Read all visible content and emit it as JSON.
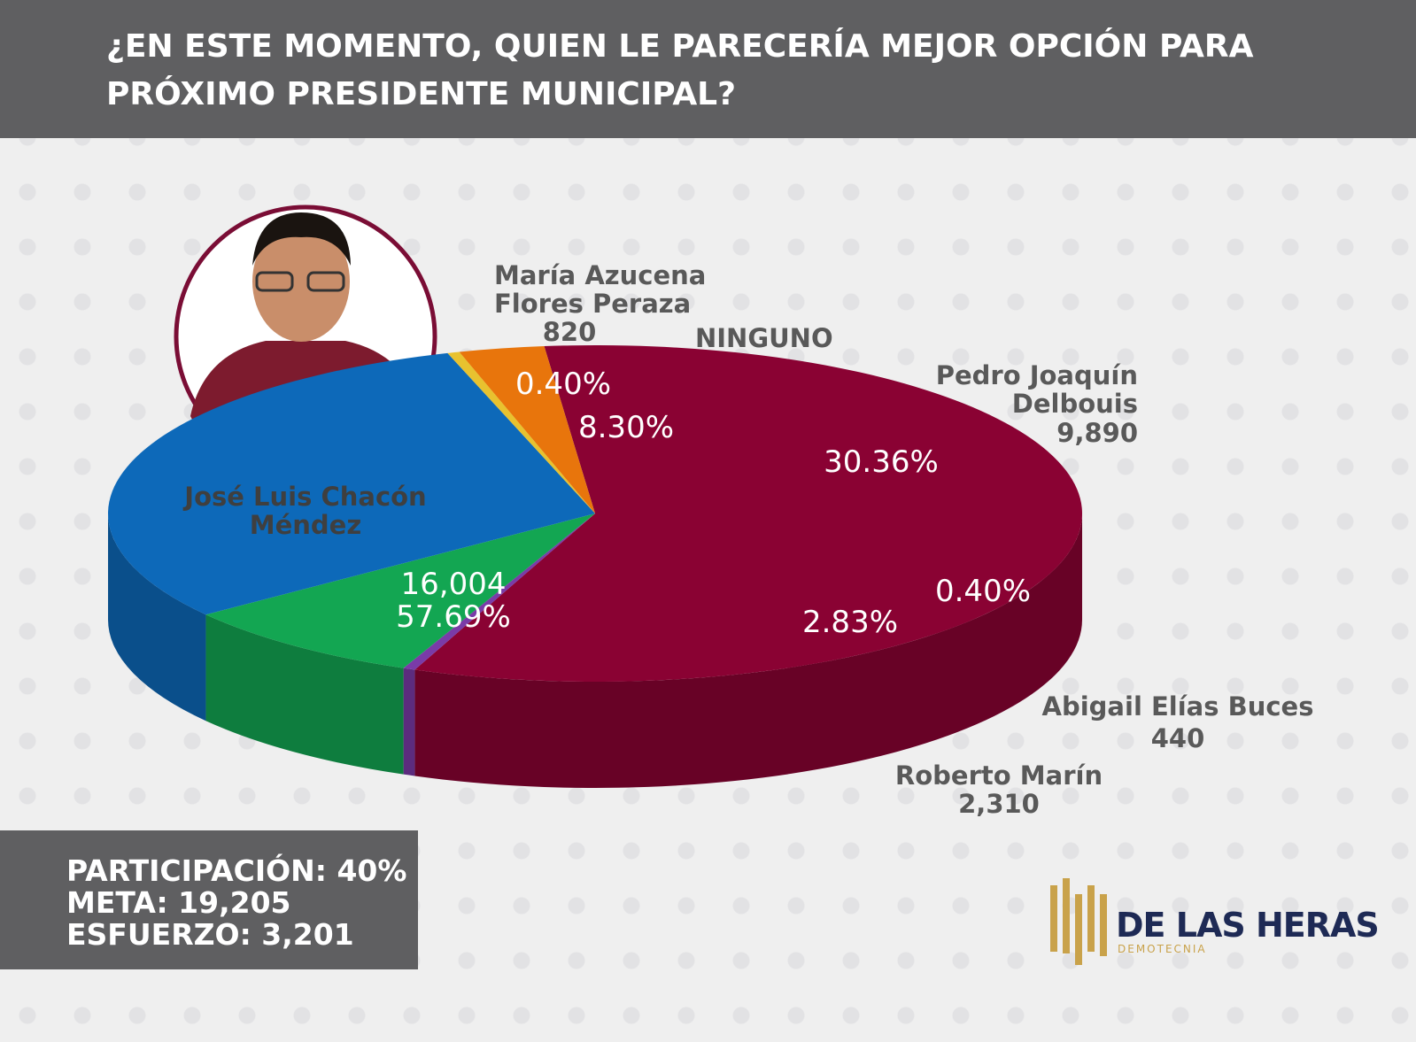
{
  "title": "¿EN ESTE MOMENTO, QUIEN LE PARECERÍA MEJOR OPCIÓN PARA PRÓXIMO PRESIDENTE MUNICIPAL?",
  "chart_data": {
    "type": "pie",
    "categories": [
      "José Luis Chacón Méndez",
      "María Azucena Flores Peraza",
      "NINGUNO",
      "Pedro Joaquín Delbouis",
      "Abigail Elías Buces",
      "Roberto Marín"
    ],
    "values": [
      57.69,
      0.4,
      8.3,
      30.36,
      0.4,
      2.83
    ],
    "value_labels": [
      "57.69%",
      "0.40%",
      "8.30%",
      "30.36%",
      "0.40%",
      "2.83%"
    ],
    "counts": [
      {
        "value": 16004,
        "label": "16,004"
      },
      820,
      null,
      {
        "value": 9890,
        "label": "9,890"
      },
      440,
      {
        "value": 2310,
        "label": "2,310"
      }
    ],
    "colors": [
      "#8a0233",
      "#7a3ba8",
      "#13a652",
      "#0d69b9",
      "#e8c22f",
      "#e8750c"
    ]
  },
  "stats": [
    "PARTICIPACIÓN: 40%",
    "META: 19,205",
    "ESFUERZO: 3,201"
  ],
  "logo": {
    "name": "DE LAS HERAS",
    "tagline": "DEMOTECNIA"
  }
}
